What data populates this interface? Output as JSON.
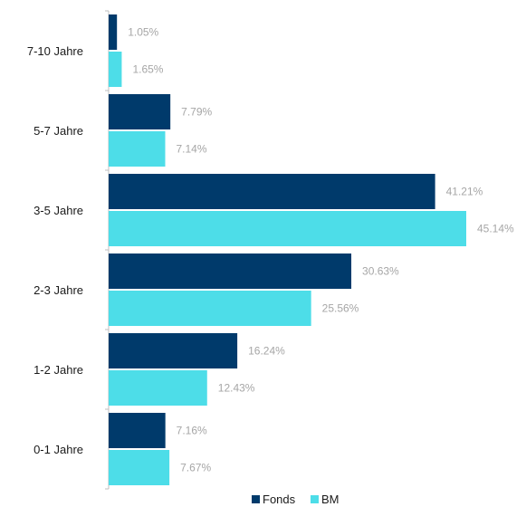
{
  "chart_data": {
    "type": "bar",
    "orientation": "horizontal",
    "categories": [
      "7-10 Jahre",
      "5-7 Jahre",
      "3-5 Jahre",
      "2-3 Jahre",
      "1-2 Jahre",
      "0-1 Jahre"
    ],
    "series": [
      {
        "name": "Fonds",
        "color": "#003a6b",
        "values": [
          1.05,
          7.79,
          41.21,
          30.63,
          16.24,
          7.16
        ],
        "labels": [
          "1.05%",
          "7.79%",
          "41.21%",
          "30.63%",
          "16.24%",
          "7.16%"
        ]
      },
      {
        "name": "BM",
        "color": "#4ddde8",
        "values": [
          1.65,
          7.14,
          45.14,
          25.56,
          12.43,
          7.67
        ],
        "labels": [
          "1.65%",
          "7.14%",
          "45.14%",
          "25.56%",
          "12.43%",
          "7.67%"
        ]
      }
    ],
    "title": "",
    "xlabel": "",
    "ylabel": "",
    "xlim": [
      0,
      45.14
    ],
    "grid": false,
    "legend_position": "bottom-center"
  }
}
